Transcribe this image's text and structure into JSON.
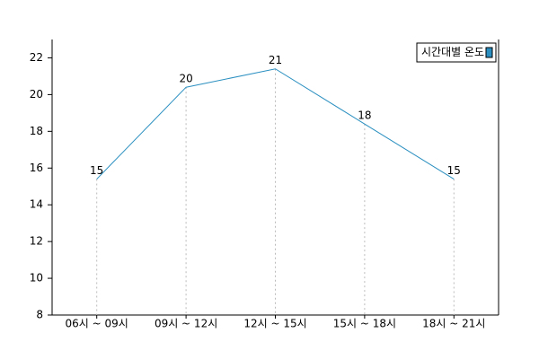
{
  "chart_data": {
    "type": "line",
    "categories": [
      "06시 ~ 09시",
      "09시 ~ 12시",
      "12시 ~ 15시",
      "15시 ~ 18시",
      "18시 ~ 21시"
    ],
    "series": [
      {
        "name": "시간대별 온도",
        "color": "#2a8fc0",
        "values": [
          15.4,
          20.4,
          21.4,
          18.4,
          15.4
        ],
        "value_labels": [
          "15",
          "20",
          "21",
          "18",
          "15"
        ]
      }
    ],
    "ylim": [
      8,
      23
    ],
    "yticks": [
      8,
      10,
      12,
      14,
      16,
      18,
      20,
      22
    ],
    "legend": "upper right"
  }
}
